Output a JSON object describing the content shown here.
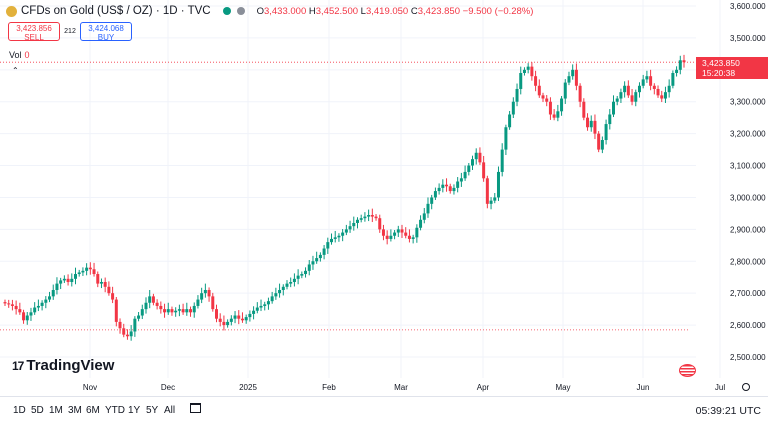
{
  "header": {
    "symbol_title": "CFDs on Gold (US$ / OZ) · 1D · TVC",
    "ohlc": {
      "o_label": "O",
      "o": "3,433.000",
      "h_label": "H",
      "h": "3,452.500",
      "l_label": "L",
      "l": "3,419.050",
      "c_label": "C",
      "c": "3,423.850",
      "change": "−9.500 (−0.28%)"
    }
  },
  "trade": {
    "sell_price": "3,423.856",
    "sell_label": "SELL",
    "spread": "212",
    "buy_price": "3,424.068",
    "buy_label": "BUY"
  },
  "volume": {
    "label": "Vol",
    "value": "0"
  },
  "price_tag": {
    "price": "3,423.850",
    "countdown": "15:20:38"
  },
  "brand": {
    "name": "TradingView",
    "mark": "17"
  },
  "toolbar": {
    "timeframes": [
      "1D",
      "5D",
      "1M",
      "3M",
      "6M",
      "YTD",
      "1Y",
      "5Y",
      "All"
    ],
    "clock": "05:39:21 UTC"
  },
  "colors": {
    "up": "#089981",
    "down": "#f23645",
    "grid": "#f0f3fa",
    "support_line": "#f23645"
  },
  "icons": [
    "gold-symbol-icon",
    "calendar-icon",
    "gear-icon",
    "us-flag-icon",
    "collapse-chevron-icon"
  ],
  "chart_data": {
    "type": "candlestick",
    "y_axis_labels": [
      "3,600.000",
      "3,500.000",
      "3,400.000",
      "3,300.000",
      "3,200.000",
      "3,100.000",
      "3,000.000",
      "2,900.000",
      "2,800.000",
      "2,700.000",
      "2,600.000",
      "2,500.000"
    ],
    "y_ticks": [
      3600,
      3500,
      3400,
      3300,
      3200,
      3100,
      3000,
      2900,
      2800,
      2700,
      2600,
      2500
    ],
    "ylim": [
      2490,
      3600
    ],
    "x_axis_labels": [
      "Nov",
      "Dec",
      "2025",
      "Feb",
      "Mar",
      "Apr",
      "May",
      "Jun",
      "Jul"
    ],
    "reference_lines": {
      "last_price_dotted": 3423.85,
      "support_dotted": 2585
    },
    "close_series": [
      2668,
      2665,
      2660,
      2650,
      2640,
      2615,
      2630,
      2640,
      2655,
      2660,
      2670,
      2680,
      2690,
      2710,
      2730,
      2740,
      2745,
      2735,
      2745,
      2760,
      2765,
      2770,
      2780,
      2775,
      2760,
      2730,
      2735,
      2720,
      2700,
      2680,
      2610,
      2590,
      2570,
      2565,
      2580,
      2620,
      2630,
      2650,
      2670,
      2690,
      2670,
      2660,
      2650,
      2640,
      2650,
      2640,
      2645,
      2650,
      2640,
      2650,
      2640,
      2660,
      2680,
      2700,
      2710,
      2690,
      2650,
      2620,
      2610,
      2600,
      2610,
      2620,
      2630,
      2620,
      2615,
      2625,
      2635,
      2645,
      2655,
      2660,
      2665,
      2675,
      2690,
      2700,
      2710,
      2720,
      2730,
      2735,
      2745,
      2755,
      2760,
      2770,
      2790,
      2800,
      2810,
      2820,
      2840,
      2860,
      2870,
      2875,
      2880,
      2890,
      2900,
      2910,
      2920,
      2930,
      2935,
      2940,
      2945,
      2940,
      2935,
      2900,
      2880,
      2870,
      2880,
      2890,
      2900,
      2890,
      2880,
      2870,
      2875,
      2905,
      2930,
      2950,
      2980,
      3000,
      3020,
      3030,
      3040,
      3035,
      3020,
      3030,
      3050,
      3060,
      3080,
      3100,
      3120,
      3140,
      3110,
      3060,
      2980,
      2990,
      3000,
      3080,
      3150,
      3220,
      3260,
      3300,
      3340,
      3390,
      3400,
      3410,
      3380,
      3350,
      3320,
      3310,
      3300,
      3260,
      3250,
      3270,
      3310,
      3360,
      3380,
      3400,
      3350,
      3300,
      3250,
      3220,
      3240,
      3200,
      3150,
      3180,
      3230,
      3260,
      3300,
      3310,
      3330,
      3350,
      3320,
      3300,
      3330,
      3350,
      3370,
      3380,
      3350,
      3340,
      3320,
      3310,
      3330,
      3350,
      3390,
      3400,
      3430,
      3423.85
    ]
  }
}
